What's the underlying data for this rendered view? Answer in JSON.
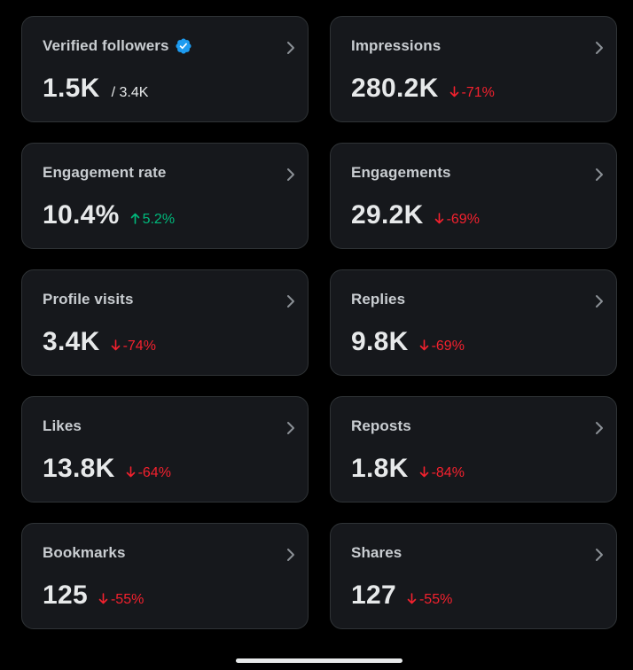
{
  "colors": {
    "background": "#000000",
    "card": "#16181c",
    "card_border": "#2f3336",
    "label": "#c9cdd1",
    "value": "#e7e9ea",
    "down": "#f4212e",
    "up": "#00ba7c",
    "verified": "#1d9bf0"
  },
  "metrics": [
    {
      "label": "Verified followers",
      "value": "1.5K",
      "secondary": "/ 3.4K",
      "verified": true,
      "delta": "",
      "direction": ""
    },
    {
      "label": "Impressions",
      "value": "280.2K",
      "delta": "-71%",
      "direction": "down"
    },
    {
      "label": "Engagement rate",
      "value": "10.4%",
      "delta": "5.2%",
      "direction": "up"
    },
    {
      "label": "Engagements",
      "value": "29.2K",
      "delta": "-69%",
      "direction": "down"
    },
    {
      "label": "Profile visits",
      "value": "3.4K",
      "delta": "-74%",
      "direction": "down"
    },
    {
      "label": "Replies",
      "value": "9.8K",
      "delta": "-69%",
      "direction": "down"
    },
    {
      "label": "Likes",
      "value": "13.8K",
      "delta": "-64%",
      "direction": "down"
    },
    {
      "label": "Reposts",
      "value": "1.8K",
      "delta": "-84%",
      "direction": "down"
    },
    {
      "label": "Bookmarks",
      "value": "125",
      "delta": "-55%",
      "direction": "down"
    },
    {
      "label": "Shares",
      "value": "127",
      "delta": "-55%",
      "direction": "down"
    }
  ],
  "icons": {
    "chevron": "chevron-right-icon",
    "verified": "verified-badge-icon",
    "down": "arrow-down-icon",
    "up": "arrow-up-icon"
  }
}
